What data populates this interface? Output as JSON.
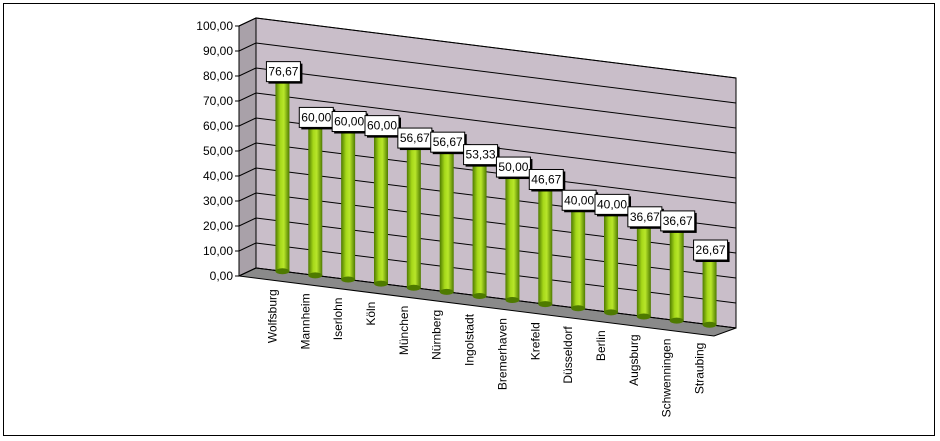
{
  "chart_data": {
    "type": "bar",
    "style": "3d-cylinder",
    "categories": [
      "Wolfsburg",
      "Mannheim",
      "Iserlohn",
      "Köln",
      "München",
      "Nürnberg",
      "Ingolstadt",
      "Bremerhaven",
      "Krefeld",
      "Düsseldorf",
      "Berlin",
      "Augsburg",
      "Schwenningen",
      "Straubing"
    ],
    "values": [
      76.67,
      60.0,
      60.0,
      60.0,
      56.67,
      56.67,
      53.33,
      50.0,
      46.67,
      40.0,
      40.0,
      36.67,
      36.67,
      26.67
    ],
    "value_labels": [
      "76,67",
      "60,00",
      "60,00",
      "60,00",
      "56,67",
      "56,67",
      "53,33",
      "50,00",
      "46,67",
      "40,00",
      "40,00",
      "36,67",
      "36,67",
      "26,67"
    ],
    "y_ticks": [
      "0,00",
      "10,00",
      "20,00",
      "30,00",
      "40,00",
      "50,00",
      "60,00",
      "70,00",
      "80,00",
      "90,00",
      "100,00"
    ],
    "ylim": [
      0,
      100
    ],
    "grid": true,
    "legend": "none",
    "colors": {
      "bar_light": "#a6d81a",
      "bar_dark": "#4e7a00",
      "bar_top": "#c8f040",
      "wall": "#c9bec9",
      "floor": "#8a8a8a",
      "side_wall": "#a9a1a9"
    },
    "title": "",
    "xlabel": "",
    "ylabel": ""
  }
}
